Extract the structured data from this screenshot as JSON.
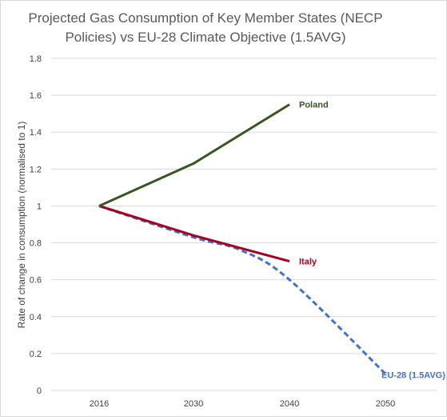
{
  "chart_data": {
    "type": "line",
    "title_lines": [
      "Projected Gas Consumption of Key Member States (NECP",
      "Policies) vs EU-28 Climate Objective (1.5AVG)"
    ],
    "xlabel": "",
    "ylabel": "Rate of change in consumption (normalised to 1)",
    "categories": [
      "2016",
      "2030",
      "2040",
      "2050"
    ],
    "ylim": [
      0,
      1.8
    ],
    "y_ticks": [
      "0",
      "0.2",
      "0.4",
      "0.6",
      "0.8",
      "1",
      "1.2",
      "1.4",
      "1.6",
      "1.8"
    ],
    "grid": "horizontal",
    "series": [
      {
        "name": "Poland",
        "color": "#375623",
        "style": "solid",
        "x": [
          "2016",
          "2030",
          "2040"
        ],
        "values": [
          1.0,
          1.23,
          1.55
        ]
      },
      {
        "name": "Italy",
        "color": "#a50021",
        "style": "solid",
        "x": [
          "2016",
          "2030",
          "2040"
        ],
        "values": [
          1.0,
          0.84,
          0.7
        ]
      },
      {
        "name": "EU-28 (1.5AVG)",
        "color": "#4472c4",
        "style": "dashed",
        "x": [
          "2016",
          "2030",
          "2035",
          "2040",
          "2050"
        ],
        "values": [
          1.0,
          0.83,
          0.76,
          0.6,
          0.09
        ]
      }
    ]
  }
}
